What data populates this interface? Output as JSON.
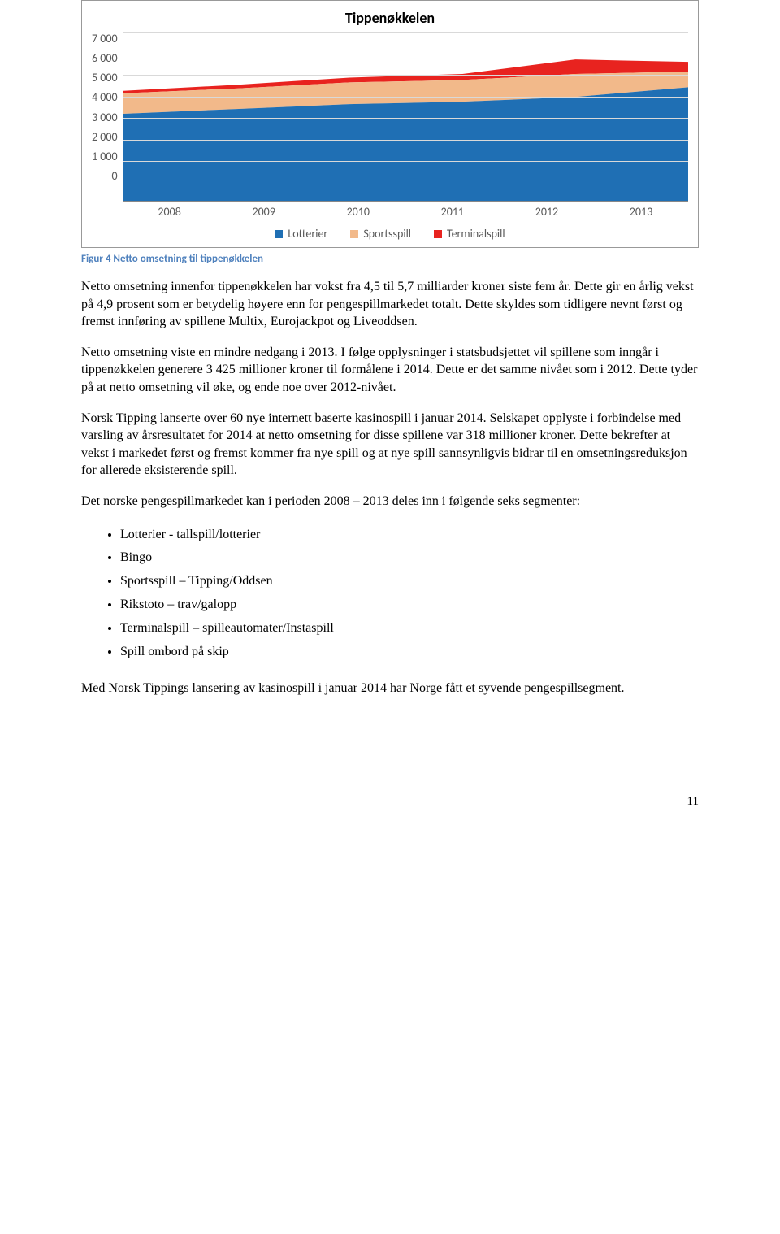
{
  "chart": {
    "title": "Tippenøkkelen",
    "type": "area-stacked",
    "categories": [
      "2008",
      "2009",
      "2010",
      "2011",
      "2012",
      "2013"
    ],
    "ylim": [
      0,
      7000
    ],
    "ytick_step": 1000,
    "yticks": [
      "7 000",
      "6 000",
      "5 000",
      "4 000",
      "3 000",
      "2 000",
      "1 000",
      "0"
    ],
    "series": [
      {
        "name": "Lotterier",
        "color": "#1f6fb4",
        "values": [
          3600,
          3800,
          4000,
          4100,
          4300,
          4700
        ]
      },
      {
        "name": "Sportsspill",
        "color": "#f2b98a",
        "values": [
          850,
          850,
          900,
          900,
          950,
          650
        ]
      },
      {
        "name": "Terminalspill",
        "color": "#e8231f",
        "values": [
          100,
          150,
          200,
          250,
          600,
          400
        ]
      }
    ],
    "grid_color": "#d9d9d9",
    "background_color": "#ffffff",
    "axis_font": "Calibri",
    "axis_fontsize": 14,
    "title_fontsize": 18
  },
  "caption": "Figur 4 Netto omsetning til tippenøkkelen",
  "paragraphs": {
    "p1": "Netto omsetning innenfor tippenøkkelen har vokst fra 4,5 til 5,7 milliarder kroner siste fem år. Dette gir en årlig vekst på 4,9 prosent som er betydelig høyere enn for pengespillmarkedet totalt. Dette skyldes som tidligere nevnt først og fremst innføring av spillene Multix, Eurojackpot og Liveoddsen.",
    "p2": "Netto omsetning viste en mindre nedgang i 2013. I følge opplysninger i statsbudsjettet vil spillene som inngår i tippenøkkelen generere 3 425 millioner kroner til formålene i 2014. Dette er det samme nivået som i 2012. Dette tyder på at netto omsetning vil øke, og ende noe over 2012-nivået.",
    "p3": "Norsk Tipping lanserte over 60 nye internett baserte kasinospill i januar 2014. Selskapet opplyste i forbindelse med varsling av årsresultatet for 2014 at netto omsetning for disse spillene var 318 millioner kroner. Dette bekrefter at vekst i markedet først og fremst kommer fra nye spill og at nye spill sannsynligvis bidrar til en omsetningsreduksjon for allerede eksisterende spill.",
    "p4": "Det norske pengespillmarkedet kan i perioden 2008 – 2013 deles inn i følgende seks segmenter:",
    "p5": "Med Norsk Tippings lansering av kasinospill i januar 2014 har Norge fått et syvende pengespillsegment."
  },
  "segments": {
    "s1": "Lotterier - tallspill/lotterier",
    "s2": "Bingo",
    "s3": "Sportsspill – Tipping/Oddsen",
    "s4": "Rikstoto – trav/galopp",
    "s5": "Terminalspill – spilleautomater/Instaspill",
    "s6": "Spill ombord på skip"
  },
  "page_number": "11"
}
